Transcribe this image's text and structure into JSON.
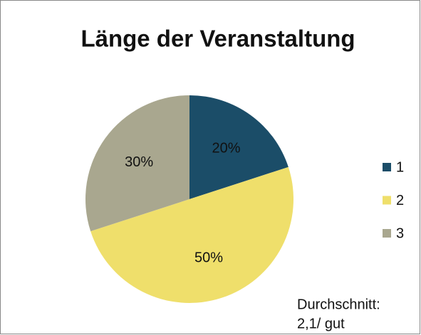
{
  "chart_data": {
    "type": "pie",
    "title": "Länge der Veranstaltung",
    "categories": [
      "1",
      "2",
      "3"
    ],
    "values": [
      20,
      50,
      30
    ],
    "value_labels": [
      "20%",
      "50%",
      "30%"
    ],
    "colors": [
      "#1b4d68",
      "#efdf6b",
      "#a9a78f"
    ],
    "legend": "right",
    "annotation": [
      "Durchschnitt:",
      "2,1/ gut"
    ]
  }
}
